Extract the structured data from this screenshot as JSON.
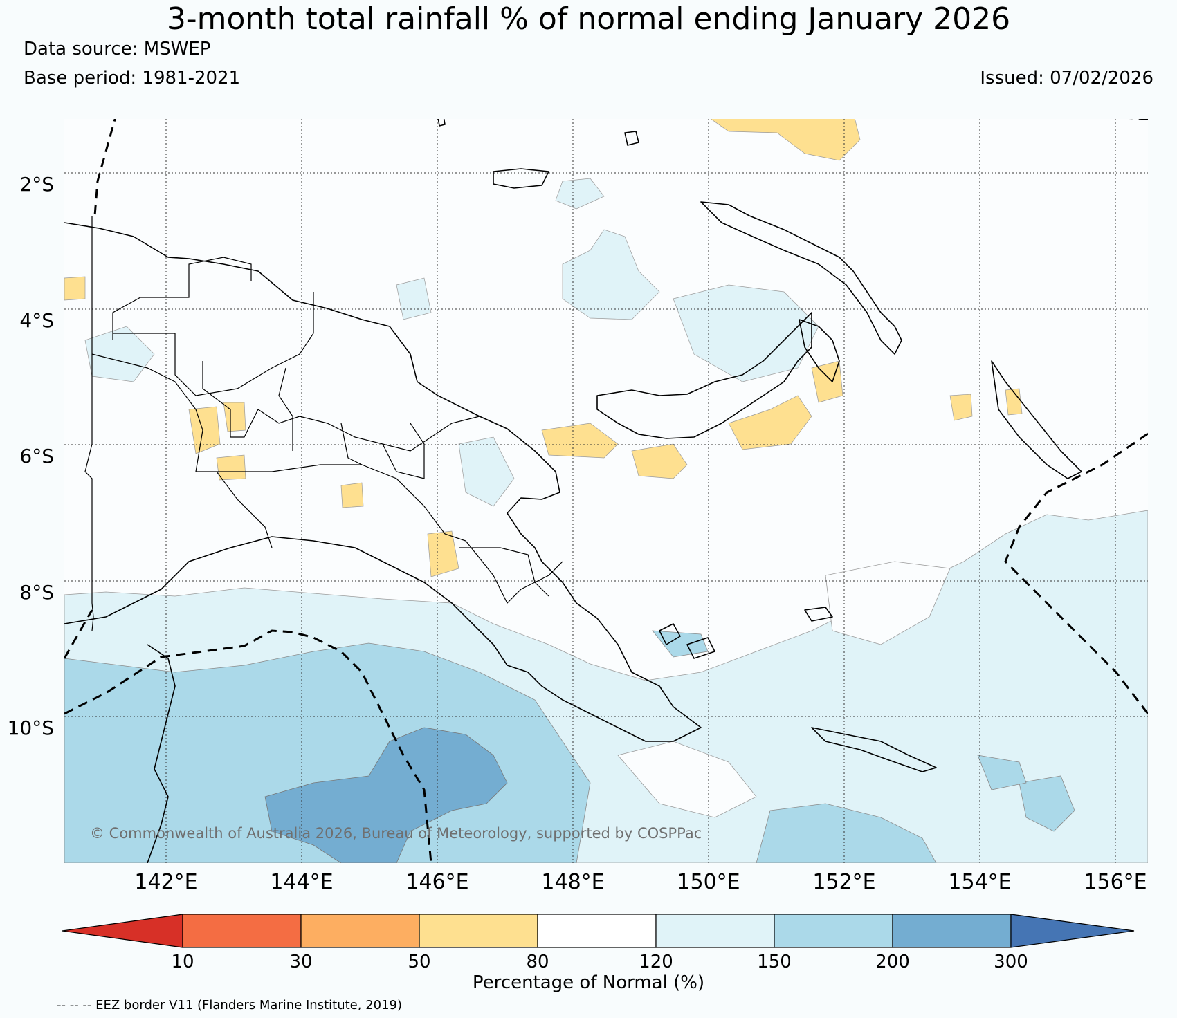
{
  "title": "3-month total rainfall % of normal ending January 2026",
  "data_source": "Data source: MSWEP",
  "base_period": "Base period: 1981-2021",
  "issued": "Issued: 07/02/2026",
  "latitude_labels": [
    "2°S",
    "4°S",
    "6°S",
    "8°S",
    "10°S"
  ],
  "longitude_labels": [
    "142°E",
    "144°E",
    "146°E",
    "148°E",
    "150°E",
    "152°E",
    "154°E",
    "156°E"
  ],
  "copyright": "© Commonwealth of Australia 2026, Bureau of Meteorology, supported by COSPPac",
  "colorbar": {
    "title": "Percentage of Normal (%)",
    "ticks": [
      "10",
      "30",
      "50",
      "80",
      "120",
      "150",
      "200",
      "300"
    ],
    "bins": [
      {
        "range": "<10",
        "color": "#d73027"
      },
      {
        "range": "10-30",
        "color": "#f46d43"
      },
      {
        "range": "30-50",
        "color": "#fdae61"
      },
      {
        "range": "50-80",
        "color": "#fee090"
      },
      {
        "range": "80-120",
        "color": "#ffffff"
      },
      {
        "range": "120-150",
        "color": "#e0f3f8"
      },
      {
        "range": "150-200",
        "color": "#abd9e9"
      },
      {
        "range": "200-300",
        "color": "#74add1"
      },
      {
        "range": ">300",
        "color": "#4575b4"
      }
    ]
  },
  "eez_note": "-- -- -- EEZ border V11 (Flanders Marine Institute, 2019)"
}
